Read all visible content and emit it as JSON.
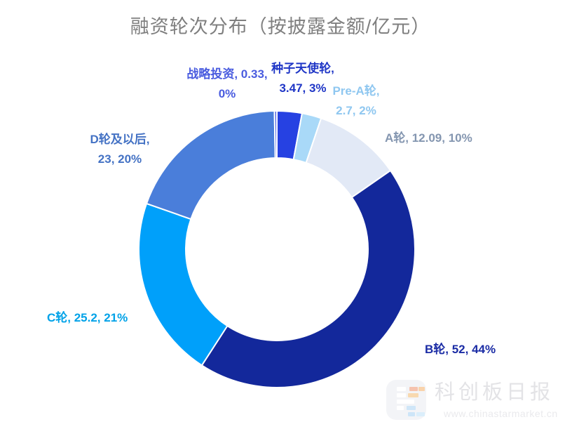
{
  "chart_data": {
    "type": "pie",
    "subtype": "donut",
    "title": "融资轮次分布（按披露金额/亿元）",
    "unit": "亿元",
    "direction": "clockwise",
    "start_angle_deg": 0,
    "hole_ratio": 0.66,
    "legend_position": "none",
    "label_position": "outside",
    "categories": [
      "种子天使轮",
      "Pre-A轮",
      "A轮",
      "B轮",
      "C轮",
      "D轮及以后",
      "战略投资"
    ],
    "values": [
      3.47,
      2.7,
      12.09,
      52,
      25.2,
      23,
      0.33
    ],
    "percent_labels": [
      "3%",
      "2%",
      "10%",
      "44%",
      "21%",
      "20%",
      "0%"
    ],
    "slice_colors": [
      "#2641E2",
      "#A9D9F8",
      "#E2E9F6",
      "#13289B",
      "#00A0FA",
      "#4A7EDA",
      "#4A5CE0"
    ]
  },
  "labels": [
    {
      "name": "seed-angel",
      "line1": "种子天使轮,",
      "line2": "3.47, 3%",
      "color": "#1F36C6"
    },
    {
      "name": "pre-a",
      "line1": "Pre-A轮,",
      "line2": "2.7, 2%",
      "color": "#8FC7F0"
    },
    {
      "name": "round-a",
      "line1": "A轮, 12.09, 10%",
      "color": "#8496B0"
    },
    {
      "name": "round-b",
      "line1": "B轮, 52, 44%",
      "color": "#1B2CA5"
    },
    {
      "name": "round-c",
      "line1": "C轮, 25.2, 21%",
      "color": "#00A2E8"
    },
    {
      "name": "round-d",
      "line1": "D轮及以后,",
      "line2": "23, 20%",
      "color": "#4472C4"
    },
    {
      "name": "strategic",
      "line1": "战略投资, 0.33,",
      "line2": "0%",
      "color": "#4A5CDF"
    }
  ],
  "watermark": {
    "brand": "科创板日报",
    "url": "www.chinastarmarket.cn"
  }
}
